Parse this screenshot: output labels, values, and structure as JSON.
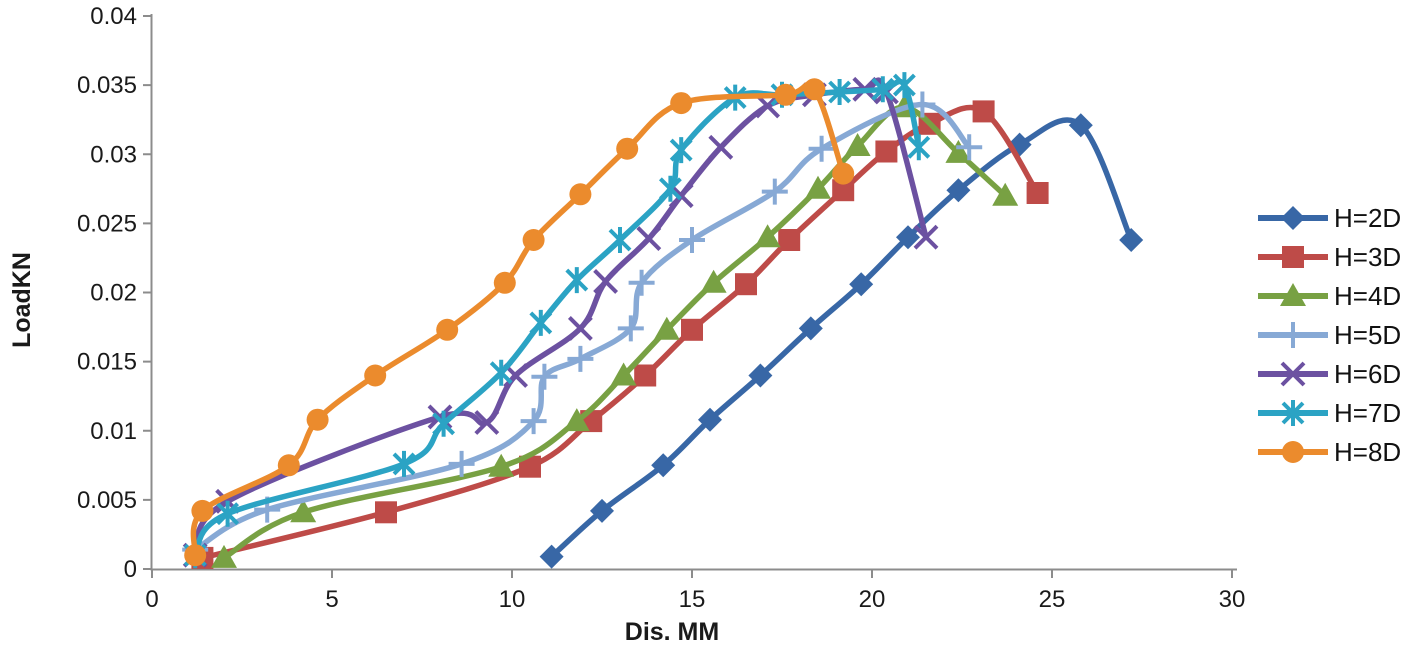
{
  "page": {
    "background": "#ffffff"
  },
  "chart_data": {
    "type": "line",
    "title": "",
    "xlabel": "Dis. MM",
    "ylabel": "LoadKN",
    "xlim": [
      0,
      30
    ],
    "ylim": [
      0,
      0.04
    ],
    "x_ticks": [
      0,
      5,
      10,
      15,
      20,
      25,
      30
    ],
    "x_tick_labels": [
      "0",
      "5",
      "10",
      "15",
      "20",
      "25",
      "30"
    ],
    "y_ticks": [
      0,
      0.005,
      0.01,
      0.015,
      0.02,
      0.025,
      0.03,
      0.035,
      0.04
    ],
    "y_tick_labels": [
      "0",
      "0.005",
      "0.01",
      "0.015",
      "0.02",
      "0.025",
      "0.03",
      "0.035",
      "0.04"
    ],
    "grid": "off",
    "legend_position": "right",
    "axis_color": "#8c8c8c",
    "series": [
      {
        "name": "H=2D",
        "color": "#3867A6",
        "marker": "diamond",
        "points": [
          [
            11.1,
            0.0009
          ],
          [
            12.5,
            0.0042
          ],
          [
            14.2,
            0.0075
          ],
          [
            15.5,
            0.0108
          ],
          [
            16.9,
            0.014
          ],
          [
            18.3,
            0.0174
          ],
          [
            19.7,
            0.0206
          ],
          [
            21.0,
            0.024
          ],
          [
            22.4,
            0.0274
          ],
          [
            24.1,
            0.0307
          ],
          [
            25.8,
            0.0321
          ],
          [
            27.2,
            0.0238
          ]
        ]
      },
      {
        "name": "H=3D",
        "color": "#BE4B48",
        "marker": "square",
        "points": [
          [
            1.4,
            0.0008
          ],
          [
            6.5,
            0.0041
          ],
          [
            10.5,
            0.0074
          ],
          [
            12.2,
            0.0107
          ],
          [
            13.7,
            0.014
          ],
          [
            15.0,
            0.0173
          ],
          [
            16.5,
            0.0206
          ],
          [
            17.7,
            0.0238
          ],
          [
            19.2,
            0.0274
          ],
          [
            20.4,
            0.0302
          ],
          [
            21.6,
            0.0322
          ],
          [
            23.1,
            0.0331
          ],
          [
            24.6,
            0.0272
          ]
        ]
      },
      {
        "name": "H=4D",
        "color": "#78A143",
        "marker": "triangle",
        "points": [
          [
            2.0,
            0.0008
          ],
          [
            4.2,
            0.0041
          ],
          [
            9.7,
            0.0074
          ],
          [
            11.8,
            0.0107
          ],
          [
            13.1,
            0.014
          ],
          [
            14.3,
            0.0173
          ],
          [
            15.6,
            0.0207
          ],
          [
            17.1,
            0.024
          ],
          [
            18.5,
            0.0275
          ],
          [
            19.6,
            0.0306
          ],
          [
            20.9,
            0.0334
          ],
          [
            22.4,
            0.0301
          ],
          [
            23.7,
            0.027
          ]
        ]
      },
      {
        "name": "H=5D",
        "color": "#87A9D5",
        "marker": "plus",
        "points": [
          [
            1.2,
            0.0014
          ],
          [
            3.2,
            0.0043
          ],
          [
            8.6,
            0.0076
          ],
          [
            10.6,
            0.0107
          ],
          [
            10.9,
            0.0139
          ],
          [
            11.9,
            0.0152
          ],
          [
            13.3,
            0.0174
          ],
          [
            13.6,
            0.0207
          ],
          [
            15.0,
            0.0238
          ],
          [
            17.3,
            0.0273
          ],
          [
            18.6,
            0.0304
          ],
          [
            21.4,
            0.0336
          ],
          [
            22.7,
            0.0305
          ]
        ]
      },
      {
        "name": "H=6D",
        "color": "#6C51A1",
        "marker": "xmark",
        "points": [
          [
            1.2,
            0.001
          ],
          [
            2.1,
            0.0049
          ],
          [
            8.0,
            0.011
          ],
          [
            9.3,
            0.0106
          ],
          [
            10.1,
            0.014
          ],
          [
            11.9,
            0.0174
          ],
          [
            12.6,
            0.0208
          ],
          [
            13.8,
            0.0239
          ],
          [
            14.7,
            0.027
          ],
          [
            15.8,
            0.0305
          ],
          [
            17.1,
            0.0335
          ],
          [
            18.4,
            0.0343
          ],
          [
            19.8,
            0.0347
          ],
          [
            20.4,
            0.0345
          ],
          [
            21.5,
            0.024
          ]
        ]
      },
      {
        "name": "H=7D",
        "color": "#2BA3C4",
        "marker": "asterisk",
        "points": [
          [
            1.2,
            0.001
          ],
          [
            2.1,
            0.004
          ],
          [
            7.0,
            0.0076
          ],
          [
            8.1,
            0.0105
          ],
          [
            9.7,
            0.0142
          ],
          [
            10.8,
            0.0178
          ],
          [
            11.8,
            0.0209
          ],
          [
            13.0,
            0.0238
          ],
          [
            14.4,
            0.0275
          ],
          [
            14.7,
            0.0303
          ],
          [
            16.2,
            0.0341
          ],
          [
            17.5,
            0.0343
          ],
          [
            19.1,
            0.0345
          ],
          [
            20.3,
            0.0347
          ],
          [
            20.9,
            0.035
          ],
          [
            21.3,
            0.0305
          ]
        ]
      },
      {
        "name": "H=8D",
        "color": "#EB8B2D",
        "marker": "circle",
        "points": [
          [
            1.2,
            0.001
          ],
          [
            1.4,
            0.0042
          ],
          [
            3.8,
            0.0075
          ],
          [
            4.6,
            0.0108
          ],
          [
            6.2,
            0.014
          ],
          [
            8.2,
            0.0173
          ],
          [
            9.8,
            0.0207
          ],
          [
            10.6,
            0.0238
          ],
          [
            11.9,
            0.0271
          ],
          [
            13.2,
            0.0304
          ],
          [
            14.7,
            0.0337
          ],
          [
            17.6,
            0.0343
          ],
          [
            18.4,
            0.0347
          ],
          [
            19.2,
            0.0286
          ]
        ]
      }
    ]
  }
}
